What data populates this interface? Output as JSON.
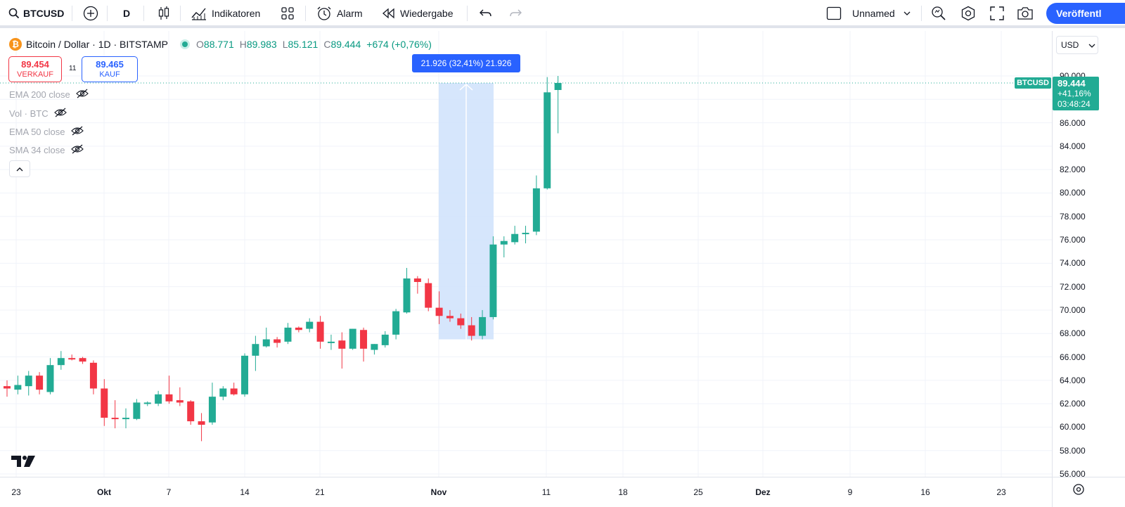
{
  "toolbar": {
    "symbol": "BTCUSD",
    "interval": "D",
    "indicators_label": "Indikatoren",
    "alert_label": "Alarm",
    "replay_label": "Wiedergabe",
    "layout_name": "Unnamed",
    "publish_label": "Veröffentl"
  },
  "legend": {
    "title": "Bitcoin / Dollar · 1D · BITSTAMP",
    "open_label": "O",
    "open": "88.771",
    "high_label": "H",
    "high": "89.983",
    "low_label": "L",
    "low": "85.121",
    "close_label": "C",
    "close": "89.444",
    "change": "+674 (+0,76%)"
  },
  "trade": {
    "sell_price": "89.454",
    "sell_label": "VERKAUF",
    "spread": "11",
    "buy_price": "89.465",
    "buy_label": "KAUF"
  },
  "indicators": [
    {
      "label": "EMA 200 close"
    },
    {
      "label": "Vol · BTC"
    },
    {
      "label": "EMA 50 close"
    },
    {
      "label": "SMA 34 close"
    }
  ],
  "measure": {
    "label": "21.926 (32,41%) 21.926"
  },
  "price_axis": {
    "currency": "USD",
    "labels": [
      "90.000",
      "88.000",
      "86.000",
      "84.000",
      "82.000",
      "80.000",
      "78.000",
      "76.000",
      "74.000",
      "72.000",
      "70.000",
      "68.000",
      "66.000",
      "64.000",
      "62.000",
      "60.000",
      "58.000",
      "56.000"
    ],
    "ticker": "BTCUSD",
    "last_price": "89.444",
    "last_change": "+41,16%",
    "countdown": "03:48:24"
  },
  "time_axis": {
    "labels": [
      "23",
      "Okt",
      "7",
      "14",
      "21",
      "Nov",
      "11",
      "18",
      "25",
      "Dez",
      "9",
      "16",
      "23"
    ]
  },
  "colors": {
    "up": "#22ab94",
    "down": "#f23645",
    "accent": "#2962ff",
    "measure_fill": "#cfe2fb"
  },
  "chart_data": {
    "type": "candlestick",
    "symbol": "BTCUSD",
    "interval": "1D",
    "ylim": [
      56000,
      90000
    ],
    "candles": [
      {
        "o": 63500,
        "h": 64000,
        "l": 62600,
        "c": 63300
      },
      {
        "o": 63200,
        "h": 64400,
        "l": 62800,
        "c": 63600
      },
      {
        "o": 63500,
        "h": 64800,
        "l": 62700,
        "c": 64400
      },
      {
        "o": 64400,
        "h": 64700,
        "l": 62800,
        "c": 63200
      },
      {
        "o": 63000,
        "h": 65900,
        "l": 62800,
        "c": 65300
      },
      {
        "o": 65300,
        "h": 66500,
        "l": 64900,
        "c": 65900
      },
      {
        "o": 65900,
        "h": 66200,
        "l": 65700,
        "c": 65800
      },
      {
        "o": 65900,
        "h": 66000,
        "l": 65400,
        "c": 65600
      },
      {
        "o": 65500,
        "h": 65700,
        "l": 62800,
        "c": 63300
      },
      {
        "o": 63300,
        "h": 64100,
        "l": 60100,
        "c": 60800
      },
      {
        "o": 60800,
        "h": 62300,
        "l": 59900,
        "c": 60700
      },
      {
        "o": 60700,
        "h": 61600,
        "l": 59900,
        "c": 60800
      },
      {
        "o": 60700,
        "h": 62400,
        "l": 60600,
        "c": 62100
      },
      {
        "o": 62000,
        "h": 62200,
        "l": 61800,
        "c": 62100
      },
      {
        "o": 62000,
        "h": 63100,
        "l": 61800,
        "c": 62800
      },
      {
        "o": 62800,
        "h": 64400,
        "l": 62000,
        "c": 62200
      },
      {
        "o": 62300,
        "h": 63400,
        "l": 61800,
        "c": 62100
      },
      {
        "o": 62200,
        "h": 62300,
        "l": 60200,
        "c": 60500
      },
      {
        "o": 60500,
        "h": 61200,
        "l": 58800,
        "c": 60200
      },
      {
        "o": 60400,
        "h": 63800,
        "l": 60200,
        "c": 62600
      },
      {
        "o": 62600,
        "h": 63500,
        "l": 62300,
        "c": 63300
      },
      {
        "o": 63300,
        "h": 63800,
        "l": 62700,
        "c": 62800
      },
      {
        "o": 62800,
        "h": 66300,
        "l": 62600,
        "c": 66100
      },
      {
        "o": 66100,
        "h": 67800,
        "l": 64800,
        "c": 67100
      },
      {
        "o": 66900,
        "h": 68500,
        "l": 66800,
        "c": 67500
      },
      {
        "o": 67500,
        "h": 67700,
        "l": 66800,
        "c": 67200
      },
      {
        "o": 67300,
        "h": 68900,
        "l": 67100,
        "c": 68500
      },
      {
        "o": 68500,
        "h": 68600,
        "l": 68100,
        "c": 68300
      },
      {
        "o": 68400,
        "h": 69300,
        "l": 68100,
        "c": 69000
      },
      {
        "o": 69000,
        "h": 69500,
        "l": 66700,
        "c": 67300
      },
      {
        "o": 67300,
        "h": 67900,
        "l": 66600,
        "c": 67300
      },
      {
        "o": 67400,
        "h": 68100,
        "l": 65000,
        "c": 66700
      },
      {
        "o": 66700,
        "h": 68400,
        "l": 66600,
        "c": 68400
      },
      {
        "o": 68300,
        "h": 68500,
        "l": 65600,
        "c": 66700
      },
      {
        "o": 66600,
        "h": 67100,
        "l": 66200,
        "c": 67100
      },
      {
        "o": 67000,
        "h": 68200,
        "l": 66800,
        "c": 67900
      },
      {
        "o": 67900,
        "h": 70100,
        "l": 67500,
        "c": 69900
      },
      {
        "o": 69800,
        "h": 73600,
        "l": 69700,
        "c": 72700
      },
      {
        "o": 72700,
        "h": 72900,
        "l": 71400,
        "c": 72400
      },
      {
        "o": 72300,
        "h": 72700,
        "l": 69900,
        "c": 70200
      },
      {
        "o": 70200,
        "h": 71600,
        "l": 68800,
        "c": 69500
      },
      {
        "o": 69500,
        "h": 70000,
        "l": 69000,
        "c": 69300
      },
      {
        "o": 69300,
        "h": 69700,
        "l": 68400,
        "c": 68700
      },
      {
        "o": 68700,
        "h": 69400,
        "l": 67400,
        "c": 67800
      },
      {
        "o": 67800,
        "h": 70000,
        "l": 67500,
        "c": 69400
      },
      {
        "o": 69400,
        "h": 76300,
        "l": 69200,
        "c": 75600
      },
      {
        "o": 75600,
        "h": 76300,
        "l": 74500,
        "c": 75900
      },
      {
        "o": 75800,
        "h": 77200,
        "l": 75600,
        "c": 76500
      },
      {
        "o": 76500,
        "h": 77200,
        "l": 75700,
        "c": 76600
      },
      {
        "o": 76700,
        "h": 81500,
        "l": 76400,
        "c": 80400
      },
      {
        "o": 80400,
        "h": 89900,
        "l": 80300,
        "c": 88600
      },
      {
        "o": 88800,
        "h": 90000,
        "l": 85100,
        "c": 89400
      }
    ],
    "measure": {
      "from": 67500,
      "to": 89400,
      "change": "21.926",
      "percent": "32,41%"
    }
  }
}
